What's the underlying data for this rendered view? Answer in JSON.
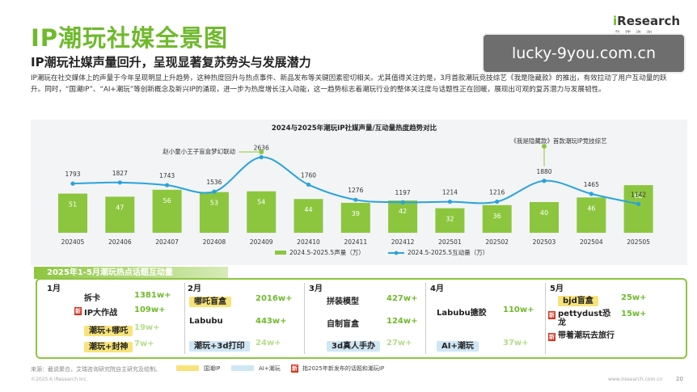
{
  "title": "IP潮玩社媒全景图",
  "subtitle": "IP潮玩社媒声量回升，呈现显著复苏势头与发展潜力",
  "paragraph": "IP潮玩在社交媒体上的声量于今年呈现明显上升趋势，这种热度回升与热点事件、新品发布等关键因素密切相关。尤其值得关注的是，3月首款潮玩竞技综艺《我是隐藏款》的推出，有效拉动了用户互动量的跃升。同时，“国潮IP”、“AI+潮玩”等创新概念及新兴IP的涌现，进一步为热度增长注入动能，这一趋势标志着潮玩行业的整体关注度与话题性正在回暖，展现出可观的复苏潜力与发展韧性。",
  "logo": {
    "brand_i": "i",
    "brand_rest": "Research",
    "sub": "艾瑞咨询"
  },
  "watermark": "lucky-9you.com.cn",
  "colors": {
    "accent": "#6fba2c",
    "bar": "#8cc63f",
    "line": "#29a3dd",
    "highlight_yellow": "#f7e37a",
    "highlight_blue": "#cfe6f5",
    "new_badge": "#d9301a"
  },
  "chart_data": {
    "type": "bar",
    "title": "2024与2025年潮玩IP社媒声量/互动量热度趋势对比",
    "categories": [
      "202405",
      "202406",
      "202407",
      "202408",
      "202409",
      "202410",
      "202411",
      "202412",
      "202501",
      "202502",
      "202503",
      "202504",
      "202505"
    ],
    "series": [
      {
        "name": "2024.5-2025.5声量（万）",
        "type": "bar",
        "values": [
          51,
          47,
          56,
          53,
          54,
          44,
          39,
          42,
          32,
          36,
          40,
          46,
          62
        ]
      },
      {
        "name": "2024.5-2025.5互动量（万）",
        "type": "line",
        "values": [
          1793,
          1827,
          1743,
          1536,
          2636,
          1760,
          1276,
          1197,
          1214,
          1216,
          1880,
          1465,
          1142
        ]
      }
    ],
    "annotations": [
      {
        "text": "赵小童小王子盲盒梦幻联动",
        "category": "202409"
      },
      {
        "text": "《我是隐藏款》首款潮玩IP竞技综艺",
        "category": "202503"
      }
    ],
    "legend": "bottom",
    "grid": false
  },
  "hot_section": {
    "header": "2025年1-5月潮玩热点话题互动量",
    "months": [
      {
        "label": "1月",
        "items": [
          {
            "topic": "拆卡",
            "value": "1381w+",
            "style": "plain",
            "new": false
          },
          {
            "topic": "IP大作战",
            "value": "109w+",
            "style": "plain",
            "new": true
          },
          {
            "topic": "潮玩+哪吒",
            "value": "19w+",
            "style": "yellow",
            "new": false
          },
          {
            "topic": "潮玩+封神",
            "value": "7w+",
            "style": "yellow",
            "new": false
          }
        ]
      },
      {
        "label": "2月",
        "items": [
          {
            "topic": "哪吒盲盒",
            "value": "2016w+",
            "style": "yellow",
            "new": false
          },
          {
            "topic": "Labubu",
            "value": "443w+",
            "style": "plain",
            "new": false
          },
          {
            "topic": "潮玩+3d打印",
            "value": "24w+",
            "style": "blue",
            "new": false
          }
        ]
      },
      {
        "label": "3月",
        "items": [
          {
            "topic": "拼装模型",
            "value": "427w+",
            "style": "plain",
            "new": false
          },
          {
            "topic": "自制盲盒",
            "value": "124w+",
            "style": "plain",
            "new": false
          },
          {
            "topic": "3d真人手办",
            "value": "27w+",
            "style": "blue",
            "new": false
          }
        ]
      },
      {
        "label": "4月",
        "items": [
          {
            "topic": "Labubu搪胶",
            "value": "110w+",
            "style": "plain",
            "new": false
          },
          {
            "topic": "AI+潮玩",
            "value": "37w+",
            "style": "blue",
            "new": false
          }
        ]
      },
      {
        "label": "5月",
        "items": [
          {
            "topic": "bjd盲盒",
            "value": "25w+",
            "style": "yellow",
            "new": false
          },
          {
            "topic": "pettydust恐龙",
            "value": "15w+",
            "style": "plain",
            "new": true
          },
          {
            "topic": "带着潮玩去旅行",
            "value": "",
            "style": "plain",
            "new": true
          }
        ]
      }
    ]
  },
  "footer": {
    "source": "来源：截说聚合，艾瑞咨询研究院自主研究及绘制。",
    "legend_guochao": "国潮IP",
    "legend_ai": "AI+潮玩",
    "legend_new_badge": "新",
    "legend_new": "指2025年新发布的话题和潮玩IP",
    "copyright": "©2025.6 iResearch Inc.",
    "site": "www.iresearch.com.cn",
    "page": "20"
  }
}
